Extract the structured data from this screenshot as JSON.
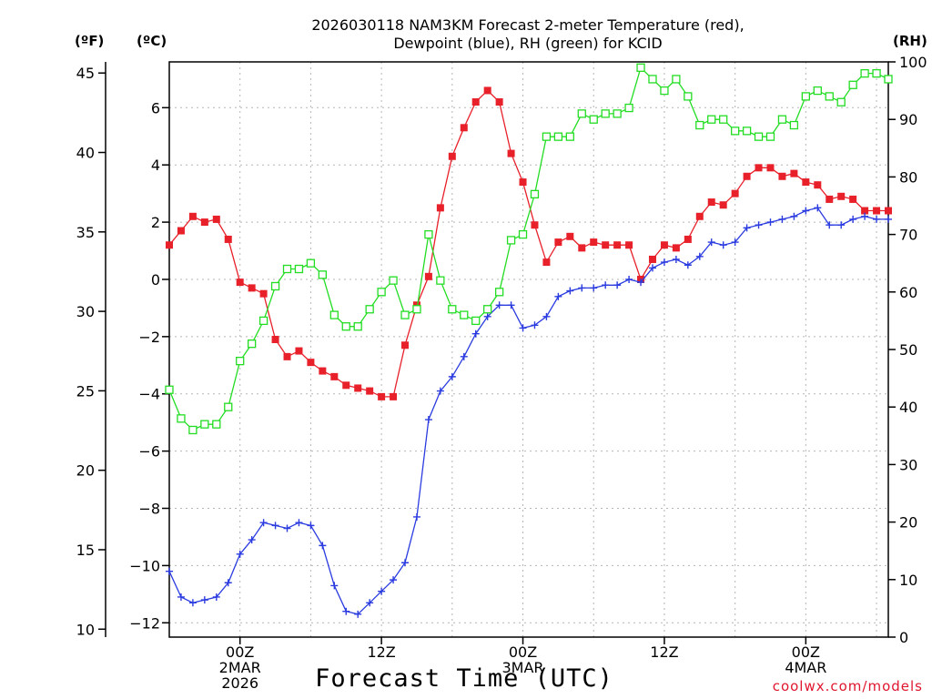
{
  "header": {
    "title_line1": "2026030118 NAM3KM Forecast 2-meter Temperature (red),",
    "title_line2": "Dewpoint (blue), RH (green) for KCID"
  },
  "units": {
    "f": "(ºF)",
    "c": "(ºC)",
    "rh": "(RH)"
  },
  "footer": {
    "xlabel": "Forecast Time (UTC)",
    "credit": "coolwx.com/models"
  },
  "chart_data": {
    "type": "line",
    "title": "2026030118 NAM3KM Forecast 2-meter Temperature (red), Dewpoint (blue), RH (green) for KCID",
    "xlabel": "Forecast Time (UTC)",
    "x_hours": [
      0,
      1,
      2,
      3,
      4,
      5,
      6,
      7,
      8,
      9,
      10,
      11,
      12,
      13,
      14,
      15,
      16,
      17,
      18,
      19,
      20,
      21,
      22,
      23,
      24,
      25,
      26,
      27,
      28,
      29,
      30,
      31,
      32,
      33,
      34,
      35,
      36,
      37,
      38,
      39,
      40,
      41,
      42,
      43,
      44,
      45,
      46,
      47,
      48,
      49,
      50,
      51,
      52,
      53,
      54,
      55,
      56,
      57,
      58,
      59,
      60,
      61
    ],
    "xlim": [
      0,
      61
    ],
    "x_ticks": [
      {
        "hour": 6,
        "lines": [
          "00Z",
          "2MAR",
          "2026"
        ]
      },
      {
        "hour": 18,
        "lines": [
          "12Z"
        ]
      },
      {
        "hour": 30,
        "lines": [
          "00Z",
          "3MAR"
        ]
      },
      {
        "hour": 42,
        "lines": [
          "12Z"
        ]
      },
      {
        "hour": 54,
        "lines": [
          "00Z",
          "4MAR"
        ]
      }
    ],
    "left_axis_c": {
      "label": "(ºC)",
      "ylim": [
        -12.5,
        7.6
      ],
      "ticks": [
        6,
        4,
        2,
        0,
        -2,
        -4,
        -6,
        -8,
        -10,
        -12
      ]
    },
    "left_axis_f": {
      "label": "(ºF)",
      "ylim": [
        9.5,
        45.7
      ],
      "ticks": [
        45,
        40,
        35,
        30,
        25,
        20,
        15,
        10
      ]
    },
    "right_axis_rh": {
      "label": "(RH)",
      "ylim": [
        0,
        100
      ],
      "ticks": [
        100,
        90,
        80,
        70,
        60,
        50,
        40,
        30,
        20,
        10,
        0
      ]
    },
    "grid": true,
    "series": [
      {
        "name": "Temperature",
        "color": "#e8202a",
        "marker": "filled-square",
        "axis": "c",
        "values": [
          1.2,
          1.7,
          2.2,
          2.0,
          2.1,
          1.4,
          -0.1,
          -0.3,
          -0.5,
          -2.1,
          -2.7,
          -2.5,
          -2.9,
          -3.2,
          -3.4,
          -3.7,
          -3.8,
          -3.9,
          -4.1,
          -4.1,
          -2.3,
          -0.9,
          0.1,
          2.5,
          4.3,
          5.3,
          6.2,
          6.6,
          6.2,
          4.4,
          3.4,
          1.9,
          0.6,
          1.3,
          1.5,
          1.1,
          1.3,
          1.2,
          1.2,
          1.2,
          0.0,
          0.7,
          1.2,
          1.1,
          1.4,
          2.2,
          2.7,
          2.6,
          3.0,
          3.6,
          3.9,
          3.9,
          3.6,
          3.7,
          3.4,
          3.3,
          2.8,
          2.9,
          2.8,
          2.4,
          2.4,
          2.4
        ]
      },
      {
        "name": "Dewpoint",
        "color": "#2a3be0",
        "marker": "plus",
        "axis": "c",
        "values": [
          -10.2,
          -11.1,
          -11.3,
          -11.2,
          -11.1,
          -10.6,
          -9.6,
          -9.1,
          -8.5,
          -8.6,
          -8.7,
          -8.5,
          -8.6,
          -9.3,
          -10.7,
          -11.6,
          -11.7,
          -11.3,
          -10.9,
          -10.5,
          -9.9,
          -8.3,
          -4.9,
          -3.9,
          -3.4,
          -2.7,
          -1.9,
          -1.3,
          -0.9,
          -0.9,
          -1.7,
          -1.6,
          -1.3,
          -0.6,
          -0.4,
          -0.3,
          -0.3,
          -0.2,
          -0.2,
          0.0,
          -0.1,
          0.4,
          0.6,
          0.7,
          0.5,
          0.8,
          1.3,
          1.2,
          1.3,
          1.8,
          1.9,
          2.0,
          2.1,
          2.2,
          2.4,
          2.5,
          1.9,
          1.9,
          2.1,
          2.2,
          2.1,
          2.1
        ]
      },
      {
        "name": "RH",
        "color": "#22dd22",
        "marker": "open-square",
        "axis": "rh",
        "values": [
          43,
          38,
          36,
          37,
          37,
          40,
          48,
          51,
          55,
          61,
          64,
          64,
          65,
          63,
          56,
          54,
          54,
          57,
          60,
          62,
          56,
          57,
          70,
          62,
          57,
          56,
          55,
          57,
          60,
          69,
          70,
          77,
          87,
          87,
          87,
          91,
          90,
          91,
          91,
          92,
          99,
          97,
          95,
          97,
          94,
          89,
          90,
          90,
          88,
          88,
          87,
          87,
          90,
          89,
          94,
          95,
          94,
          93,
          96,
          98,
          98,
          97
        ]
      }
    ]
  }
}
